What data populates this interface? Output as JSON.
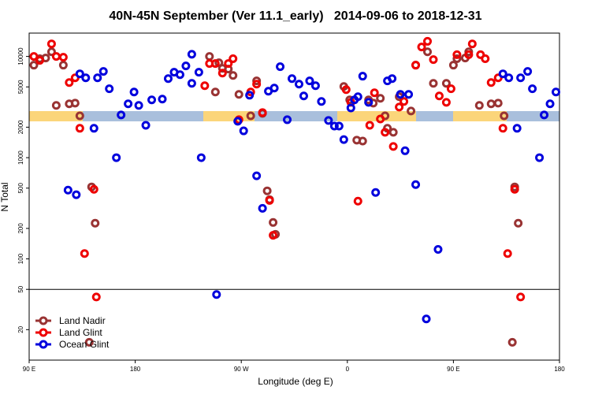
{
  "chart_data": {
    "type": "scatter",
    "title": "40N-45N September (Ver 11.1_early)   2014-09-06 to 2018-12-31",
    "x_label": "Longitude (deg E)",
    "y_label": "N Total",
    "xlim": [
      90,
      540
    ],
    "ylim": [
      10,
      17000
    ],
    "ylog": true,
    "hline": 50,
    "legend": "lower left",
    "xticks": [
      {
        "value": 90,
        "label": "90 E"
      },
      {
        "value": 180,
        "label": "180"
      },
      {
        "value": 270,
        "label": "90 W"
      },
      {
        "value": 360,
        "label": "0"
      },
      {
        "value": 450,
        "label": "90 E"
      },
      {
        "value": 540,
        "label": "180"
      }
    ],
    "yticks": [
      20,
      50,
      100,
      200,
      500,
      1000,
      2000,
      5000,
      10000
    ],
    "series": [
      {
        "name": "Land Nadir",
        "color": "#993333",
        "x": [
          94,
          99,
          104,
          109,
          113,
          119,
          124,
          129,
          133,
          143,
          146,
          141,
          243,
          248,
          251,
          254,
          259,
          263,
          268,
          278,
          283,
          288,
          292,
          294,
          297,
          299,
          357,
          362,
          368,
          373,
          378,
          382,
          388,
          392,
          394,
          399,
          404,
          414,
          418,
          428,
          433,
          444,
          450,
          453,
          460,
          463,
          472,
          482,
          488,
          493,
          502,
          505,
          500
        ],
        "values": [
          8200,
          9490,
          9640,
          11100,
          3280,
          8200,
          3400,
          3460,
          2590,
          514,
          225,
          15,
          10000,
          4450,
          8660,
          7630,
          7500,
          6490,
          4220,
          2590,
          5730,
          2740,
          470,
          385,
          229,
          175,
          5050,
          3720,
          1490,
          1460,
          3720,
          3460,
          3860,
          2590,
          1950,
          1780,
          4000,
          2890,
          8200,
          11100,
          5420,
          5420,
          8200,
          9490,
          9640,
          11100,
          3280,
          3400,
          3460,
          2590,
          514,
          225,
          15
        ]
      },
      {
        "name": "Land Glint",
        "color": "#ee0000",
        "x": [
          94,
          99,
          109,
          113,
          119,
          124,
          129,
          133,
          137,
          145,
          147,
          239,
          243,
          248,
          254,
          259,
          263,
          268,
          278,
          283,
          288,
          294,
          297,
          359,
          363,
          369,
          379,
          383,
          388,
          392,
          399,
          404,
          408,
          418,
          423,
          428,
          433,
          438,
          444,
          448,
          453,
          463,
          466,
          473,
          477,
          482,
          488,
          492,
          496,
          502,
          507
        ],
        "values": [
          10000,
          9140,
          13300,
          10000,
          9820,
          5520,
          6150,
          1950,
          113,
          487,
          42,
          5140,
          8510,
          8510,
          6850,
          8510,
          9490,
          2370,
          4450,
          5330,
          2790,
          378,
          171,
          4700,
          3520,
          372,
          2090,
          4370,
          2410,
          1780,
          1290,
          3160,
          3590,
          8200,
          12400,
          14100,
          9300,
          4070,
          3520,
          4790,
          10400,
          10400,
          13300,
          10400,
          9490,
          5520,
          6150,
          1950,
          113,
          487,
          42
        ]
      },
      {
        "name": "Ocean Glint",
        "color": "#0000dd",
        "x": [
          123,
          130,
          133,
          138,
          145,
          148,
          153,
          158,
          164,
          168,
          174,
          179,
          183,
          189,
          194,
          203,
          208,
          213,
          218,
          223,
          228,
          228,
          234,
          236,
          249,
          267,
          272,
          277,
          283,
          288,
          293,
          298,
          303,
          309,
          313,
          319,
          323,
          328,
          333,
          338,
          344,
          349,
          353,
          357,
          363,
          366,
          369,
          373,
          378,
          384,
          394,
          398,
          405,
          409,
          412,
          418,
          427,
          437,
          492,
          497,
          504,
          507,
          513,
          517,
          523,
          527,
          532,
          537
        ],
        "values": [
          478,
          430,
          6730,
          6150,
          1950,
          6150,
          7110,
          4790,
          1000,
          2640,
          3400,
          4450,
          3280,
          2090,
          3720,
          3790,
          6040,
          6980,
          6610,
          8060,
          5420,
          10500,
          6980,
          1000,
          44.5,
          2290,
          1840,
          4140,
          661,
          316,
          4530,
          4870,
          7920,
          2370,
          6040,
          5330,
          4070,
          5730,
          5140,
          3590,
          2330,
          2050,
          2050,
          1510,
          3100,
          3720,
          4000,
          6380,
          3520,
          453,
          5730,
          6040,
          4220,
          1170,
          4220,
          542,
          25.5,
          124,
          6730,
          6150,
          1950,
          6150,
          7110,
          4790,
          1000,
          2640,
          3400,
          4450
        ]
      }
    ]
  }
}
